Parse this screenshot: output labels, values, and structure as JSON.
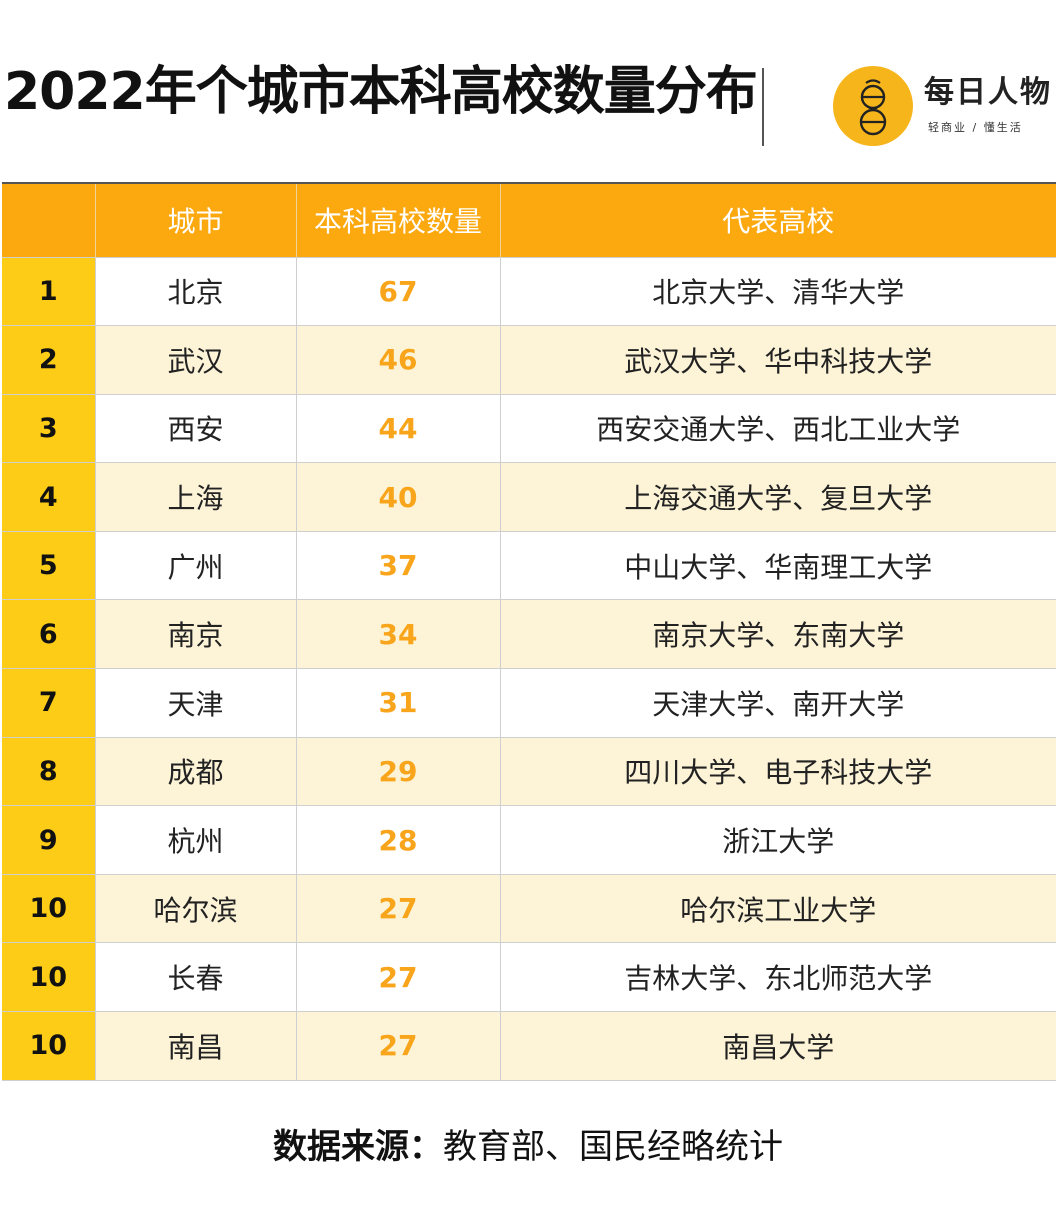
{
  "title": "2022年个城市本科高校数量分布",
  "brand": {
    "name": "每日人物",
    "slogan": "轻商业 / 懂生活",
    "logo_icon": "yellow-circle-logo-icon",
    "accent_color": "#f6b51a"
  },
  "colors": {
    "header_bg": "#fca80f",
    "rank_bg": "#fccc16",
    "stripe_bg": "#fdf4d8",
    "count_text": "#f8a51b"
  },
  "chart_data": {
    "type": "table",
    "columns": [
      "",
      "城市",
      "本科高校数量",
      "代表高校"
    ],
    "rows": [
      {
        "rank": "1",
        "city": "北京",
        "count": 67,
        "schools": "北京大学、清华大学"
      },
      {
        "rank": "2",
        "city": "武汉",
        "count": 46,
        "schools": "武汉大学、华中科技大学"
      },
      {
        "rank": "3",
        "city": "西安",
        "count": 44,
        "schools": "西安交通大学、西北工业大学"
      },
      {
        "rank": "4",
        "city": "上海",
        "count": 40,
        "schools": "上海交通大学、复旦大学"
      },
      {
        "rank": "5",
        "city": "广州",
        "count": 37,
        "schools": "中山大学、华南理工大学"
      },
      {
        "rank": "6",
        "city": "南京",
        "count": 34,
        "schools": "南京大学、东南大学"
      },
      {
        "rank": "7",
        "city": "天津",
        "count": 31,
        "schools": "天津大学、南开大学"
      },
      {
        "rank": "8",
        "city": "成都",
        "count": 29,
        "schools": "四川大学、电子科技大学"
      },
      {
        "rank": "9",
        "city": "杭州",
        "count": 28,
        "schools": "浙江大学"
      },
      {
        "rank": "10",
        "city": "哈尔滨",
        "count": 27,
        "schools": "哈尔滨工业大学"
      },
      {
        "rank": "10",
        "city": "长春",
        "count": 27,
        "schools": "吉林大学、东北师范大学"
      },
      {
        "rank": "10",
        "city": "南昌",
        "count": 27,
        "schools": "南昌大学"
      }
    ]
  },
  "source": {
    "label": "数据来源：",
    "text": "教育部、国民经略统计"
  }
}
